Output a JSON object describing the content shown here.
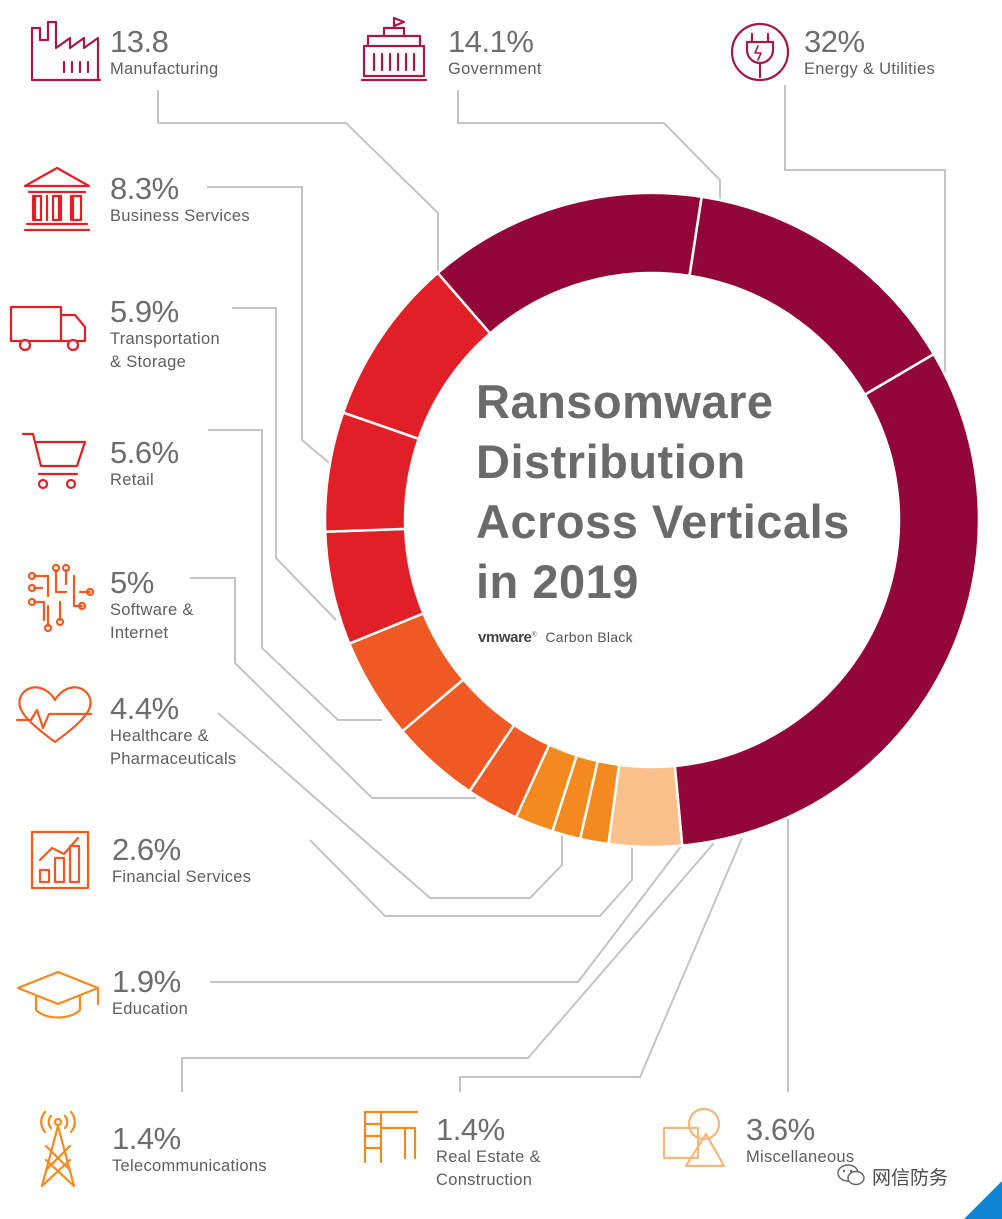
{
  "chart_data": {
    "type": "pie",
    "title_lines": [
      "Ransomware",
      "Distribution",
      "Across Verticals",
      "in 2019"
    ],
    "brand": {
      "vm": "vmware",
      "name": "Carbon Black"
    },
    "slices": [
      {
        "value": 32,
        "value_label": "32%",
        "label_lines": [
          "Energy & Utilities"
        ],
        "color": "#920737",
        "icon": "plug-icon"
      },
      {
        "value": 3.6,
        "value_label": "3.6%",
        "label_lines": [
          "Miscellaneous"
        ],
        "color": "#fbc18c",
        "icon": "shapes-icon"
      },
      {
        "value": 1.4,
        "value_label": "1.4%",
        "label_lines": [
          "Real Estate &",
          "Construction"
        ],
        "color": "#f28a20",
        "icon": "construction-frame-icon"
      },
      {
        "value": 1.4,
        "value_label": "1.4%",
        "label_lines": [
          "Telecommunications"
        ],
        "color": "#f28a20",
        "icon": "antenna-tower-icon"
      },
      {
        "value": 1.9,
        "value_label": "1.9%",
        "label_lines": [
          "Education"
        ],
        "color": "#f28a20",
        "icon": "graduation-cap-icon"
      },
      {
        "value": 2.6,
        "value_label": "2.6%",
        "label_lines": [
          "Financial Services"
        ],
        "color": "#ef5a24",
        "icon": "bar-chart-icon"
      },
      {
        "value": 4.4,
        "value_label": "4.4%",
        "label_lines": [
          "Healthcare &",
          "Pharmaceuticals"
        ],
        "color": "#ef5a24",
        "icon": "heartbeat-icon"
      },
      {
        "value": 5,
        "value_label": "5%",
        "label_lines": [
          "Software &",
          "Internet"
        ],
        "color": "#ef5a24",
        "icon": "circuit-icon"
      },
      {
        "value": 5.6,
        "value_label": "5.6%",
        "label_lines": [
          "Retail"
        ],
        "color": "#e01f26",
        "icon": "shopping-cart-icon"
      },
      {
        "value": 5.9,
        "value_label": "5.9%",
        "label_lines": [
          "Transportation",
          "& Storage"
        ],
        "color": "#e01f26",
        "icon": "delivery-truck-icon"
      },
      {
        "value": 8.3,
        "value_label": "8.3%",
        "label_lines": [
          "Business Services"
        ],
        "color": "#e01f26",
        "icon": "bank-building-icon"
      },
      {
        "value": 13.8,
        "value_label": "13.8",
        "label_lines": [
          "Manufacturing"
        ],
        "color": "#920737",
        "icon": "factory-icon"
      },
      {
        "value": 14.1,
        "value_label": "14.1%",
        "label_lines": [
          "Government"
        ],
        "color": "#920737",
        "icon": "government-building-icon"
      }
    ]
  },
  "watermark": "网信防务"
}
